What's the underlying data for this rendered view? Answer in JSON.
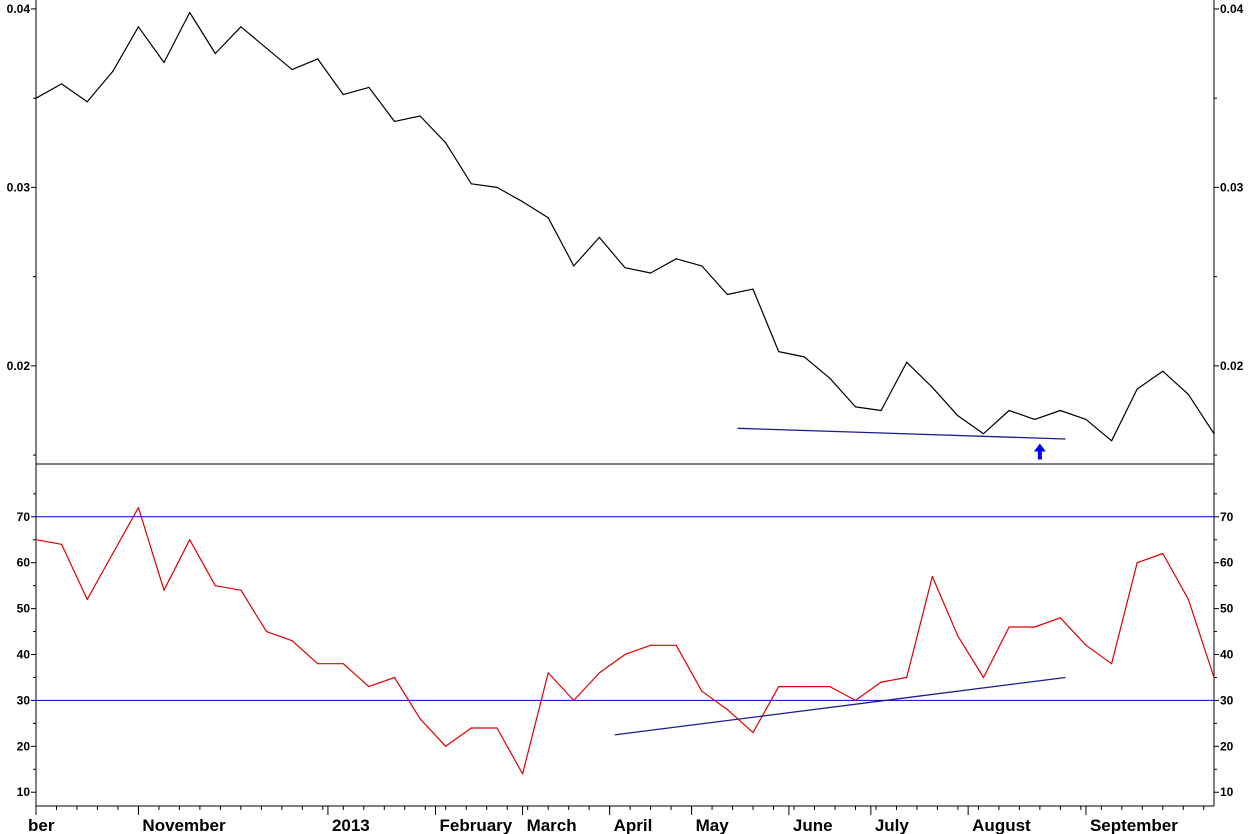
{
  "chart_data": [
    {
      "type": "line",
      "panel": "price",
      "title": "",
      "xlabel": "",
      "ylabel": "",
      "ylim": [
        0.0145,
        0.0405
      ],
      "yticks": [
        "0.02",
        "0.03",
        "0.04"
      ],
      "grid": false,
      "line_color": "#000000",
      "x_index_range": [
        0,
        230
      ],
      "series": [
        {
          "name": "",
          "x": [
            0,
            5,
            10,
            15,
            20,
            25,
            30,
            35,
            40,
            45,
            50,
            55,
            60,
            65,
            70,
            75,
            80,
            85,
            90,
            95,
            100,
            105,
            110,
            115,
            120,
            125,
            130,
            135,
            140,
            145,
            150,
            155,
            160,
            165,
            170,
            175,
            180,
            185,
            190,
            195,
            200,
            205,
            210,
            215,
            220,
            225,
            230
          ],
          "values": [
            0.035,
            0.0358,
            0.0348,
            0.0365,
            0.039,
            0.037,
            0.0398,
            0.0375,
            0.039,
            0.0378,
            0.0366,
            0.0372,
            0.0352,
            0.0356,
            0.0337,
            0.034,
            0.0325,
            0.0302,
            0.03,
            0.0292,
            0.0283,
            0.0256,
            0.0272,
            0.0255,
            0.0252,
            0.026,
            0.0256,
            0.024,
            0.0243,
            0.0208,
            0.0205,
            0.0193,
            0.0177,
            0.0175,
            0.0202,
            0.0188,
            0.0172,
            0.0162,
            0.0175,
            0.017,
            0.0175,
            0.017,
            0.0158,
            0.0187,
            0.0197,
            0.0184,
            0.0162
          ]
        }
      ],
      "trendline": {
        "x": [
          137,
          201
        ],
        "values": [
          0.0165,
          0.0159
        ],
        "color": "#1c1c8c"
      },
      "annotation": {
        "x": 196,
        "value": 0.01565,
        "icon": "arrow-up-icon",
        "color": "#0000ff"
      }
    },
    {
      "type": "line",
      "panel": "oscillator",
      "title": "",
      "xlabel": "",
      "ylabel": "",
      "ylim": [
        7,
        81.5
      ],
      "yticks": [
        "10",
        "20",
        "30",
        "40",
        "50",
        "60",
        "70"
      ],
      "reference_lines": [
        {
          "value": 70,
          "color": "#0000cc"
        },
        {
          "value": 30,
          "color": "#0000cc"
        }
      ],
      "grid": false,
      "line_color": "#dd0000",
      "x_index_range": [
        0,
        230
      ],
      "series": [
        {
          "name": "",
          "x": [
            0,
            5,
            10,
            15,
            20,
            25,
            30,
            35,
            40,
            45,
            50,
            55,
            60,
            65,
            70,
            75,
            80,
            85,
            90,
            95,
            100,
            105,
            110,
            115,
            120,
            125,
            130,
            135,
            140,
            145,
            150,
            155,
            160,
            165,
            170,
            175,
            180,
            185,
            190,
            195,
            200,
            205,
            210,
            215,
            220,
            225,
            230
          ],
          "values": [
            65,
            64,
            52,
            62,
            72,
            54,
            65,
            55,
            54,
            45,
            43,
            38,
            38,
            33,
            35,
            26,
            20,
            24,
            24,
            14,
            36,
            30,
            36,
            40,
            42,
            42,
            32,
            28,
            23,
            33,
            33,
            33,
            30,
            34,
            35,
            57,
            44,
            35,
            46,
            46,
            48,
            42,
            38,
            60,
            62,
            52,
            35
          ]
        }
      ],
      "trendline": {
        "x": [
          113,
          201
        ],
        "values": [
          22.5,
          35
        ],
        "color": "#1c1c8c"
      }
    }
  ],
  "x_axis": {
    "labels": [
      {
        "text": "ber",
        "x": 0
      },
      {
        "text": "November",
        "x": 20
      },
      {
        "text": "2013",
        "x": 57
      },
      {
        "text": "February",
        "x": 78
      },
      {
        "text": "March",
        "x": 95
      },
      {
        "text": "April",
        "x": 112
      },
      {
        "text": "May",
        "x": 128
      },
      {
        "text": "June",
        "x": 147
      },
      {
        "text": "July",
        "x": 163
      },
      {
        "text": "August",
        "x": 182
      },
      {
        "text": "September",
        "x": 205
      }
    ]
  }
}
